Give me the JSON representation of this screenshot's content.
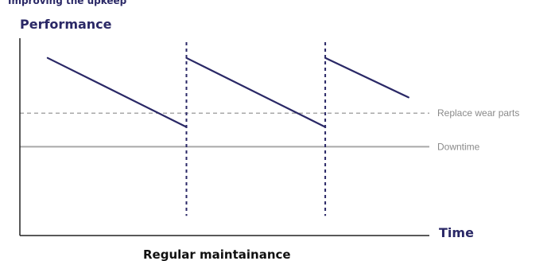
{
  "top_clipped_text": "Improving the upkeep",
  "chart_data": {
    "type": "line",
    "title": "",
    "xlabel": "Time",
    "ylabel": "Performance",
    "caption": "Regular maintainance",
    "grid": false,
    "legend": "none",
    "series": [
      {
        "color": "#2a2866",
        "segments": [
          {
            "x": [
              0.0,
              1.0
            ],
            "y": [
              0.9,
              0.55
            ]
          },
          {
            "x": [
              1.0,
              2.0
            ],
            "y": [
              0.9,
              0.55
            ]
          },
          {
            "x": [
              2.0,
              2.6
            ],
            "y": [
              0.9,
              0.7
            ]
          }
        ]
      }
    ],
    "maintenance_events": [
      1.0,
      2.0
    ],
    "reference_lines": [
      {
        "label": "Replace wear parts",
        "y": 0.62,
        "style": "dashed",
        "color": "#a8a8a8"
      },
      {
        "label": "Downtime",
        "y": 0.45,
        "style": "solid",
        "color": "#a8a8a8"
      }
    ],
    "xlim": [
      -0.2,
      2.75
    ],
    "ylim": [
      0.0,
      1.0
    ]
  }
}
